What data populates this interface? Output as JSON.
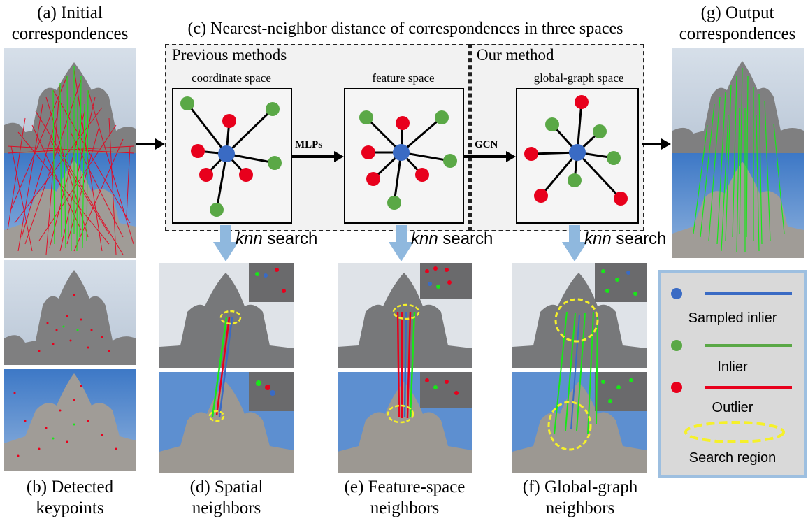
{
  "header": {
    "initial_line1": "(a) Initial",
    "initial_line2": "correspondences",
    "center_title": "(c) Nearest-neighbor distance of correspondences in three spaces",
    "output_line1": "(g) Output",
    "output_line2": "correspondences"
  },
  "panels": {
    "previous_methods": "Previous methods",
    "our_method": "Our method",
    "coordinate_space": "coordinate space",
    "feature_space": "feature space",
    "global_graph_space": "global-graph space",
    "mlps": "MLPs",
    "gcn": "GCN",
    "knn_italic": "knn",
    "knn_search": " search"
  },
  "captions": {
    "b_line1": "(b) Detected",
    "b_line2": "keypoints",
    "d_line1": "(d) Spatial",
    "d_line2": "neighbors",
    "e_line1": "(e) Feature-space",
    "e_line2": "neighbors",
    "f_line1": "(f) Global-graph",
    "f_line2": "neighbors"
  },
  "legend": {
    "sampled_inlier": "Sampled inlier",
    "inlier": "Inlier",
    "outlier": "Outlier",
    "search_region": "Search region"
  },
  "colors": {
    "sampled": "#3a6bc4",
    "inlier": "#5aa846",
    "outlier": "#e8001c",
    "search": "#f5f02a",
    "legend_border": "#9dbfe0",
    "arrow_blue": "#8fb8de",
    "sky": "#c9d6e6",
    "sky_blue": "#3f7ac9"
  }
}
